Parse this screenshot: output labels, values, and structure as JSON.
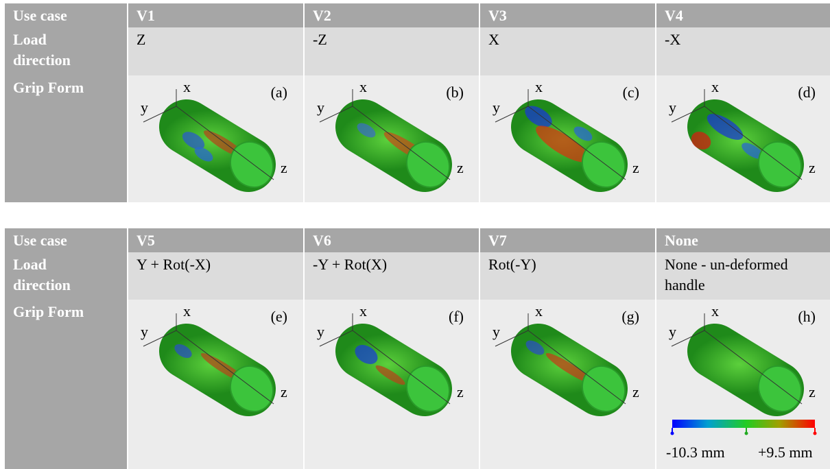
{
  "tables": [
    {
      "header": [
        "Use case",
        "V1",
        "V2",
        "V3",
        "V4"
      ],
      "rows": [
        [
          "Load direction",
          "Z",
          "-Z",
          "X",
          "-X"
        ],
        [
          "Grip Form",
          "(a)",
          "(b)",
          "(c)",
          "(d)"
        ]
      ]
    },
    {
      "header": [
        "Use case",
        "V5",
        "V6",
        "V7",
        "None"
      ],
      "rows": [
        [
          "Load direction",
          "Y + Rot(-X)",
          "-Y + Rot(X)",
          "Rot(-Y)",
          "None - un-deformed handle"
        ],
        [
          "Grip Form",
          "(e)",
          "(f)",
          "(g)",
          "(h)"
        ]
      ]
    }
  ],
  "axis_labels": [
    "x",
    "y",
    "z"
  ],
  "colorbar": {
    "min": "-10.3 mm",
    "max": "+9.5 mm"
  }
}
